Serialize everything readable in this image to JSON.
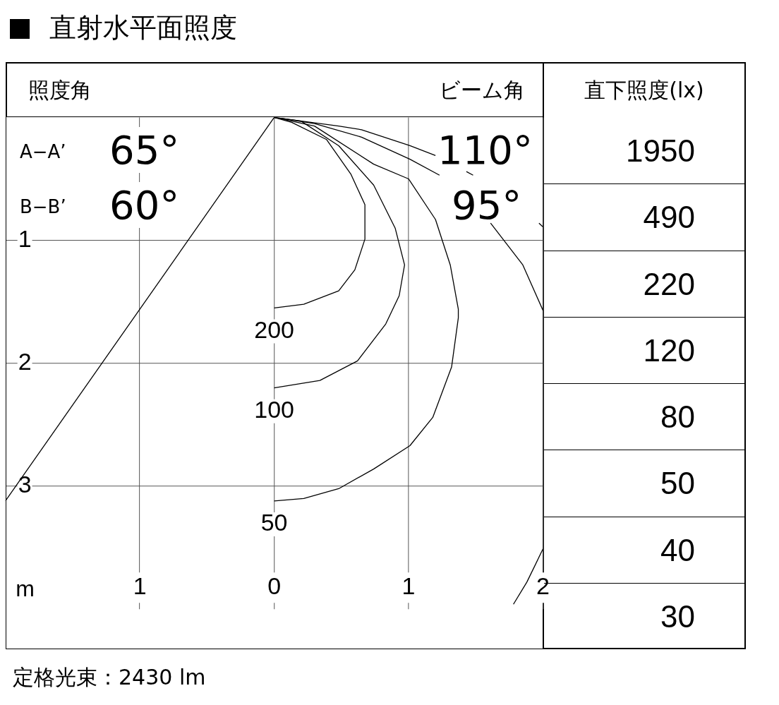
{
  "chart_data": [
    {
      "type": "line",
      "title": "直射水平面照度",
      "xlabel": "m",
      "xlim": [
        -2,
        2
      ],
      "ylim": [
        4,
        0
      ],
      "xticks": [
        {
          "value": -1,
          "label": "1"
        },
        0,
        1,
        2
      ],
      "yticks": [
        1,
        2,
        3
      ],
      "grid": true,
      "legend": false,
      "marker": "none",
      "annotations": [
        "照度角",
        "ビーム角",
        "A−A’",
        "65°",
        "B−B’",
        "60°",
        "110°",
        "95°",
        "定格光束：2430 lm"
      ],
      "series": [
        {
          "name": "200",
          "color": "#000000",
          "x": [
            0,
            0.13,
            0.39,
            0.57,
            0.675,
            0.675,
            0.6,
            0.48,
            0.22,
            0
          ],
          "values": [
            0,
            0.04,
            0.18,
            0.46,
            0.71,
            0.99,
            1.24,
            1.41,
            1.52,
            1.55
          ]
        },
        {
          "name": "100",
          "color": "#000000",
          "x": [
            0,
            0.2,
            0.48,
            0.74,
            0.9,
            0.97,
            0.93,
            0.83,
            0.62,
            0.34,
            0
          ],
          "values": [
            0,
            0.03,
            0.23,
            0.55,
            0.9,
            1.2,
            1.45,
            1.68,
            1.98,
            2.14,
            2.2
          ]
        },
        {
          "name": "50",
          "color": "#000000",
          "x": [
            0,
            0.3,
            0.74,
            1.0,
            1.2,
            1.31,
            1.37,
            1.37,
            1.32,
            1.18,
            1.01,
            0.74,
            0.48,
            0.22,
            0
          ],
          "values": [
            0,
            0.07,
            0.38,
            0.5,
            0.83,
            1.2,
            1.56,
            1.63,
            2.03,
            2.44,
            2.67,
            2.86,
            3.02,
            3.1,
            3.12
          ]
        },
        {
          "color": "#000000",
          "x": [
            0,
            0.3,
            0.65,
            1.01,
            1.23,
            1.42,
            1.61,
            1.85,
            2.0
          ],
          "values": [
            0,
            0.05,
            0.16,
            0.34,
            0.47,
            null,
            0.86,
            1.2,
            1.57
          ]
        },
        {
          "color": "#000000",
          "x": [
            0,
            0.48,
            0.65,
            1.01,
            1.2,
            1.33,
            1.43,
            1.48,
            1.72,
            1.97,
            2.0
          ],
          "values": [
            0,
            0.07,
            0.1,
            0.23,
            0.31,
            null,
            0.44,
            0.47,
            null,
            0.86,
            0.89
          ]
        },
        {
          "color": "#000000",
          "x": [
            1.78,
            1.88,
            2.0
          ],
          "values": [
            3.96,
            3.78,
            3.51
          ]
        },
        {
          "color": "#000000",
          "x": [
            0,
            -2.0
          ],
          "values": [
            0,
            3.12
          ]
        }
      ]
    },
    {
      "type": "other",
      "title": "直下照度(lx)",
      "annotations": [
        "1950",
        "490",
        "220",
        "120",
        "80",
        "50",
        "40",
        "30"
      ]
    }
  ]
}
